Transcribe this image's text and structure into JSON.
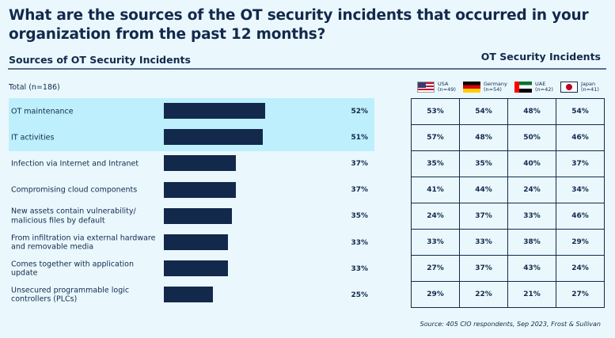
{
  "title": "What are the sources of the OT security incidents that occurred in your organization from the past 12 months?",
  "left_heading": "Sources of OT Security Incidents",
  "right_heading": "OT Security Incidents",
  "total_label": "Total (n=186)",
  "source": "Source: 405 CIO respondents, Sep 2023, Frost & Sullivan",
  "colors": {
    "bar": "#13294b",
    "highlight": "#bdeffc",
    "background": "#eaf8fe"
  },
  "legend": [
    {
      "country": "USA",
      "n": "(n=49)",
      "flag": "usa-flag-icon"
    },
    {
      "country": "Germany",
      "n": "(n=54)",
      "flag": "germany-flag-icon"
    },
    {
      "country": "UAE",
      "n": "(n=42)",
      "flag": "uae-flag-icon"
    },
    {
      "country": "Japan",
      "n": "(n=41)",
      "flag": "japan-flag-icon"
    }
  ],
  "chart_data": {
    "type": "bar",
    "orientation": "horizontal",
    "title": "Sources of OT Security Incidents",
    "subtitle": "Total (n=186)",
    "categories": [
      "OT maintenance",
      "IT activities",
      "Infection via Internet and Intranet",
      "Compromising cloud components",
      "New assets contain vulnerability/ malicious files by default",
      "From infiltration via external hardware and removable media",
      "Comes together with application update",
      "Unsecured programmable logic controllers (PLCs)"
    ],
    "values": [
      52,
      51,
      37,
      37,
      35,
      33,
      33,
      25
    ],
    "value_labels": [
      "52%",
      "51%",
      "37%",
      "37%",
      "35%",
      "33%",
      "33%",
      "25%"
    ],
    "highlighted": [
      0,
      1
    ],
    "xlim": [
      0,
      100
    ],
    "unit": "%",
    "table": {
      "title": "OT Security Incidents",
      "columns": [
        "USA (n=49)",
        "Germany (n=54)",
        "UAE (n=42)",
        "Japan (n=41)"
      ],
      "rows": [
        [
          "53%",
          "54%",
          "48%",
          "54%"
        ],
        [
          "57%",
          "48%",
          "50%",
          "46%"
        ],
        [
          "35%",
          "35%",
          "40%",
          "37%"
        ],
        [
          "41%",
          "44%",
          "24%",
          "34%"
        ],
        [
          "24%",
          "37%",
          "33%",
          "46%"
        ],
        [
          "33%",
          "33%",
          "38%",
          "29%"
        ],
        [
          "27%",
          "37%",
          "43%",
          "24%"
        ],
        [
          "29%",
          "22%",
          "21%",
          "27%"
        ]
      ]
    }
  }
}
